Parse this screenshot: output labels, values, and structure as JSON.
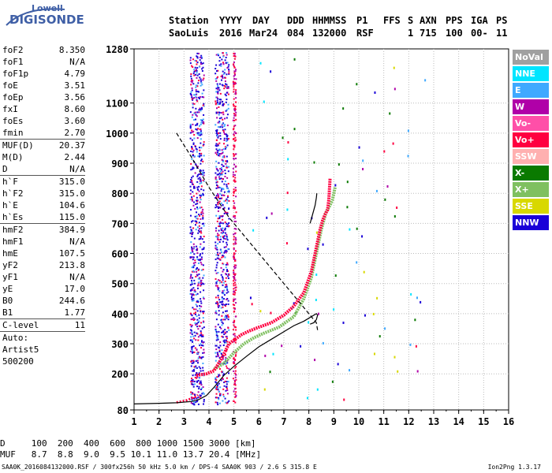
{
  "logo": {
    "line1": "Lowell",
    "line2": "DIGISONDE"
  },
  "header": {
    "labels": {
      "station": "Station",
      "yyyy": "YYYY",
      "day": "DAY",
      "ddd": "DDD",
      "hhmmss": "HHMMSS",
      "p1": "P1",
      "ffs": "FFS",
      "s": "S",
      "axn": "AXN",
      "pps": "PPS",
      "iga": "IGA",
      "ps": "PS"
    },
    "values": {
      "station": "SaoLuis",
      "yyyy": "2016",
      "day": "Mar24",
      "ddd": "084",
      "hhmmss": "132000",
      "p1": "RSF",
      "s": "1",
      "axn": "715",
      "pps": "100",
      "iga": "00-",
      "ps": "11"
    }
  },
  "params": {
    "group1": [
      {
        "label": "foF2",
        "value": "8.350"
      },
      {
        "label": "foF1",
        "value": "N/A"
      },
      {
        "label": "foF1p",
        "value": "4.79"
      },
      {
        "label": "foE",
        "value": "3.51"
      },
      {
        "label": "foEp",
        "value": "3.56"
      },
      {
        "label": "fxI",
        "value": "8.60"
      },
      {
        "label": "foEs",
        "value": "3.60"
      },
      {
        "label": "fmin",
        "value": "2.70"
      }
    ],
    "group2": [
      {
        "label": "MUF(D)",
        "value": "20.37"
      },
      {
        "label": "M(D)",
        "value": "2.44"
      },
      {
        "label": "D",
        "value": "N/A"
      }
    ],
    "group3": [
      {
        "label": "h`F",
        "value": "315.0"
      },
      {
        "label": "h`F2",
        "value": "315.0"
      },
      {
        "label": "h`E",
        "value": "104.6"
      },
      {
        "label": "h`Es",
        "value": "115.0"
      }
    ],
    "group4": [
      {
        "label": "hmF2",
        "value": "384.9"
      },
      {
        "label": "hmF1",
        "value": "N/A"
      },
      {
        "label": "hmE",
        "value": "107.5"
      },
      {
        "label": "yF2",
        "value": "213.8"
      },
      {
        "label": "yF1",
        "value": "N/A"
      },
      {
        "label": "yE",
        "value": "17.0"
      },
      {
        "label": "B0",
        "value": "244.6"
      },
      {
        "label": "B1",
        "value": "1.77"
      }
    ],
    "group5": [
      {
        "label": "C-level",
        "value": "11"
      }
    ],
    "auto": [
      "Auto:",
      "Artist5",
      "500200"
    ]
  },
  "legend": [
    {
      "label": "NoVal",
      "color": "#a0a0a0"
    },
    {
      "label": "NNE",
      "color": "#00e5ff"
    },
    {
      "label": "E",
      "color": "#3fa9ff"
    },
    {
      "label": "W",
      "color": "#b000a8"
    },
    {
      "label": "Vo-",
      "color": "#ff4fa8"
    },
    {
      "label": "Vo+",
      "color": "#ff0040"
    },
    {
      "label": "SSW",
      "color": "#ffb0b0"
    },
    {
      "label": "X-",
      "color": "#0a7a00"
    },
    {
      "label": "X+",
      "color": "#7fc060"
    },
    {
      "label": "SSE",
      "color": "#d8d800"
    },
    {
      "label": "NNW",
      "color": "#1a00d8"
    }
  ],
  "bottom": {
    "row1": "D     100  200  400  600  800 1000 1500 3000 [km]",
    "row2": "MUF   8.7  8.8  9.0  9.5 10.1 11.0 13.7 20.4 [MHz]"
  },
  "footer": {
    "left": "SAA0K_2016084132000.RSF / 300fx256h 50 kHz 5.0 km / DPS-4 SAA0K 903 / 2.6 S 315.8 E",
    "right": "Ion2Png 1.3.17"
  },
  "chart_data": {
    "type": "scatter",
    "xlim": [
      1,
      16
    ],
    "ylim": [
      80,
      1280
    ],
    "xticks": [
      1,
      2,
      3,
      4,
      5,
      6,
      7,
      8,
      9,
      10,
      11,
      12,
      13,
      14,
      15,
      16
    ],
    "yticks": [
      80,
      200,
      300,
      400,
      500,
      600,
      700,
      800,
      900,
      1000,
      1100,
      1280
    ],
    "grid": true,
    "profile_solid": {
      "x": [
        1.0,
        2.0,
        2.7,
        3.3,
        3.6,
        3.9,
        4.2,
        4.6,
        5.0,
        5.5,
        6.0,
        6.5,
        7.0,
        7.4,
        7.8,
        8.1,
        8.3,
        8.35,
        8.3,
        8.2,
        8.05
      ],
      "y": [
        100,
        102,
        104,
        108,
        115,
        128,
        155,
        195,
        225,
        258,
        290,
        315,
        340,
        360,
        375,
        390,
        400,
        395,
        380,
        370,
        365
      ]
    },
    "profile_right": {
      "x": [
        8.05,
        8.15,
        8.25,
        8.3,
        8.32
      ],
      "y": [
        700,
        730,
        760,
        785,
        800
      ]
    },
    "profile_dashed": {
      "x": [
        2.7,
        3.3,
        4.0,
        4.8,
        5.5,
        6.0,
        6.5,
        7.0,
        7.5,
        8.0,
        8.3,
        8.35
      ],
      "y": [
        1000,
        920,
        820,
        720,
        650,
        600,
        550,
        500,
        450,
        400,
        370,
        345
      ]
    },
    "trace_ordinary": {
      "x": [
        3.5,
        3.9,
        4.2,
        4.5,
        4.8,
        5.0,
        5.1,
        5.3,
        5.6,
        6.0,
        6.5,
        7.0,
        7.4,
        7.8,
        8.1,
        8.3,
        8.45,
        8.55,
        8.65,
        8.75,
        8.8,
        8.85
      ],
      "y": [
        195,
        200,
        210,
        250,
        300,
        312,
        318,
        330,
        342,
        355,
        370,
        395,
        425,
        470,
        540,
        620,
        680,
        710,
        730,
        745,
        780,
        850
      ]
    },
    "trace_extraordinary": {
      "x": [
        4.2,
        4.6,
        5.0,
        5.4,
        5.8,
        6.2,
        6.8,
        7.4,
        7.8,
        8.1,
        8.3,
        8.5,
        8.7,
        8.85,
        8.95,
        9.05
      ],
      "y": [
        215,
        235,
        270,
        300,
        320,
        335,
        355,
        390,
        450,
        520,
        600,
        680,
        740,
        760,
        780,
        820
      ]
    },
    "e_layer_trace": {
      "x": [
        2.7,
        2.9,
        3.1,
        3.3,
        3.5,
        3.56
      ],
      "y": [
        105,
        108,
        112,
        118,
        125,
        130
      ]
    },
    "spread_columns": [
      3.5,
      4.5,
      5.0
    ]
  }
}
